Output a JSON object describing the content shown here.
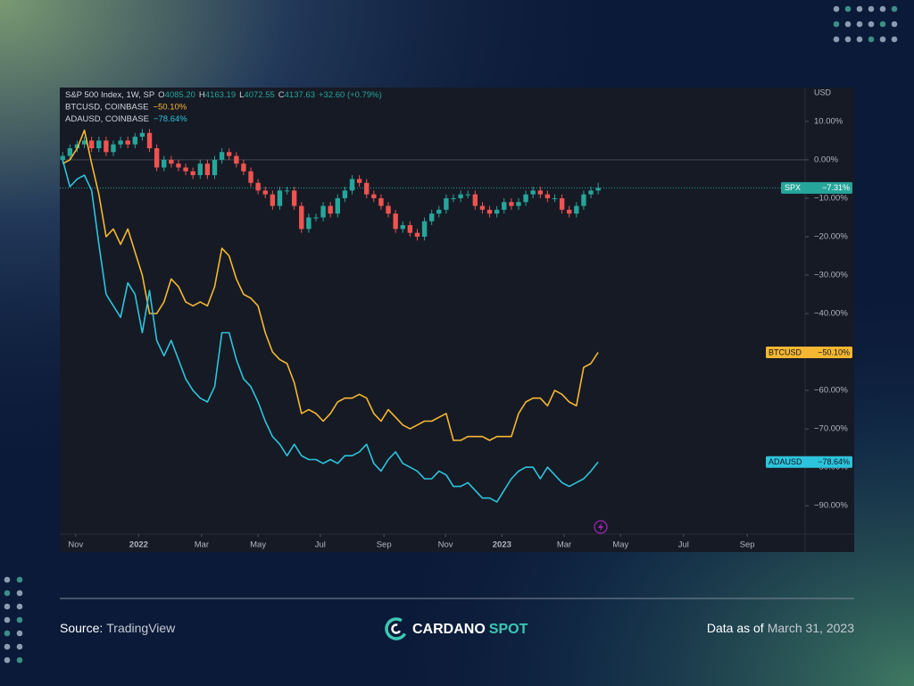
{
  "chart_data": {
    "type": "line",
    "header": {
      "title": "S&P 500 Index, 1W, SP",
      "fields": [
        {
          "label": "O",
          "value": "4085.20"
        },
        {
          "label": "H",
          "value": "4163.19"
        },
        {
          "label": "L",
          "value": "4072.55"
        },
        {
          "label": "C",
          "value": "4137.63"
        }
      ],
      "change": "+32.60 (+0.79%)"
    },
    "y_unit": "USD",
    "x": [
      0,
      1,
      2,
      3,
      4,
      5,
      6,
      7,
      8,
      9,
      10,
      11,
      12,
      13,
      14,
      15,
      16,
      17,
      18,
      19,
      20,
      21,
      22,
      23,
      24,
      25,
      26,
      27,
      28,
      29,
      30,
      31,
      32,
      33,
      34,
      35,
      36,
      37,
      38,
      39,
      40,
      41,
      42,
      43,
      44,
      45,
      46,
      47,
      48,
      49,
      50,
      51,
      52,
      53,
      54,
      55,
      56,
      57,
      58,
      59,
      60,
      61,
      62,
      63,
      64,
      65,
      66,
      67,
      68,
      69,
      70,
      71,
      72,
      73,
      74
    ],
    "xlim": [
      -0.4,
      102.6
    ],
    "xticks": [
      {
        "value": 1.8,
        "label": "Nov"
      },
      {
        "value": 10.5,
        "label": "2022"
      },
      {
        "value": 19.2,
        "label": "Mar"
      },
      {
        "value": 27.0,
        "label": "May"
      },
      {
        "value": 35.6,
        "label": "Jul"
      },
      {
        "value": 44.4,
        "label": "Sep"
      },
      {
        "value": 52.9,
        "label": "Nov"
      },
      {
        "value": 60.7,
        "label": "2023"
      },
      {
        "value": 69.3,
        "label": "Mar"
      },
      {
        "value": 77.1,
        "label": "May"
      },
      {
        "value": 85.8,
        "label": "Jul"
      },
      {
        "value": 94.6,
        "label": "Sep"
      }
    ],
    "ylim": [
      -97.4,
      18.8
    ],
    "yticks": [
      {
        "value": 10,
        "label": "10.00%"
      },
      {
        "value": 0,
        "label": "0.00%"
      },
      {
        "value": -10,
        "label": "−10.00%"
      },
      {
        "value": -20,
        "label": "−20.00%"
      },
      {
        "value": -30,
        "label": "−30.00%"
      },
      {
        "value": -40,
        "label": "−40.00%"
      },
      {
        "value": -50,
        "label": "−50.00%"
      },
      {
        "value": -60,
        "label": "−60.00%"
      },
      {
        "value": -70,
        "label": "−70.00%"
      },
      {
        "value": -80,
        "label": "−80.00%"
      },
      {
        "value": -90,
        "label": "−90.00%"
      }
    ],
    "series": [
      {
        "name": "SPX",
        "type": "candlestick",
        "up_color": "#26a69a",
        "down_color": "#ef5350",
        "color": "#26a69a",
        "value_label": "−7.31%",
        "open": [
          0,
          1,
          3,
          4,
          5,
          3,
          5,
          2,
          4,
          5,
          4,
          6,
          7,
          3,
          -2,
          0,
          -1,
          -2,
          -3,
          -4,
          -1,
          -4,
          0,
          2,
          1,
          -1,
          -3,
          -6,
          -8,
          -9,
          -12,
          -8,
          -8,
          -12,
          -18,
          -15,
          -15,
          -12,
          -14,
          -10,
          -8,
          -5,
          -6,
          -9,
          -10,
          -12,
          -14,
          -18,
          -17,
          -19,
          -20,
          -16,
          -14,
          -13,
          -10,
          -10,
          -9,
          -9,
          -12,
          -13,
          -14,
          -13,
          -11,
          -12,
          -11,
          -9,
          -8,
          -9,
          -10,
          -10,
          -13,
          -14,
          -12,
          -9,
          -8
        ],
        "high": [
          2,
          4,
          5,
          6,
          6,
          6,
          6,
          5,
          6,
          6,
          7,
          8,
          8,
          4,
          1,
          1,
          0,
          -1,
          -2,
          0,
          0,
          1,
          3,
          3,
          2,
          0,
          -2,
          -5,
          -7,
          -8,
          -7,
          -7,
          -7,
          -11,
          -14,
          -14,
          -11,
          -11,
          -9,
          -7,
          -4,
          -4,
          -5,
          -8,
          -9,
          -11,
          -13,
          -16,
          -16,
          -18,
          -15,
          -13,
          -12,
          -9,
          -9,
          -8,
          -8,
          -8,
          -11,
          -12,
          -12,
          -10,
          -10,
          -10,
          -8,
          -7,
          -7,
          -8,
          -9,
          -9,
          -12,
          -11,
          -8,
          -7,
          -6
        ],
        "low": [
          -1,
          0,
          2,
          3,
          2,
          2,
          1,
          1,
          3,
          3,
          3,
          5,
          2,
          -3,
          -3,
          -2,
          -3,
          -4,
          -5,
          -5,
          -5,
          -5,
          -1,
          0,
          -2,
          -4,
          -7,
          -9,
          -10,
          -13,
          -13,
          -9,
          -13,
          -19,
          -19,
          -16,
          -16,
          -15,
          -15,
          -11,
          -9,
          -7,
          -10,
          -11,
          -13,
          -15,
          -19,
          -19,
          -20,
          -21,
          -21,
          -17,
          -15,
          -14,
          -11,
          -11,
          -10,
          -13,
          -14,
          -15,
          -15,
          -14,
          -13,
          -13,
          -12,
          -10,
          -10,
          -11,
          -11,
          -14,
          -15,
          -15,
          -13,
          -10,
          -9
        ],
        "close": [
          1,
          3,
          4,
          5,
          3,
          5,
          2,
          4,
          5,
          4,
          6,
          7,
          3,
          -2,
          0,
          -1,
          -2,
          -3,
          -4,
          -1,
          -4,
          0,
          2,
          1,
          -1,
          -3,
          -6,
          -8,
          -9,
          -12,
          -8,
          -8,
          -12,
          -18,
          -15,
          -15,
          -12,
          -14,
          -10,
          -8,
          -5,
          -6,
          -9,
          -10,
          -12,
          -14,
          -18,
          -17,
          -19,
          -20,
          -16,
          -14,
          -13,
          -10,
          -10,
          -9,
          -9,
          -12,
          -13,
          -14,
          -13,
          -11,
          -12,
          -11,
          -9,
          -8,
          -9,
          -10,
          -10,
          -13,
          -14,
          -12,
          -9,
          -8,
          -7.31
        ]
      },
      {
        "name": "BTCUSD",
        "title": "BTCUSD, COINBASE",
        "color": "#f5b731",
        "value_label": "−50.10%",
        "values": [
          -1,
          0,
          3,
          7.7,
          -1,
          -9,
          -20,
          -18,
          -22,
          -18,
          -24,
          -30,
          -40,
          -40,
          -37,
          -31,
          -33,
          -37,
          -38,
          -37,
          -38,
          -33,
          -23,
          -25,
          -31,
          -35,
          -36,
          -38,
          -45,
          -50,
          -52,
          -53,
          -58,
          -66,
          -65,
          -66,
          -68,
          -66,
          -63,
          -62,
          -62,
          -61,
          -62,
          -66,
          -68,
          -65,
          -67,
          -69,
          -70,
          -69,
          -68,
          -68,
          -67,
          -66,
          -73,
          -73,
          -72,
          -72,
          -72,
          -73,
          -72,
          -72,
          -72,
          -66,
          -63,
          -62,
          -62,
          -64,
          -60,
          -61,
          -63,
          -64,
          -54,
          -53,
          -50.1
        ]
      },
      {
        "name": "ADAUSD",
        "title": "ADAUSD, COINBASE",
        "color": "#2cc4dc",
        "value_label": "−78.64%",
        "values": [
          0,
          -7,
          -5,
          -4,
          -8,
          -22,
          -35,
          -38,
          -41,
          -32,
          -35,
          -45,
          -34,
          -47,
          -51,
          -47,
          -52,
          -57,
          -60,
          -62,
          -63,
          -59,
          -45,
          -45,
          -52,
          -57,
          -59,
          -63,
          -68,
          -72,
          -74,
          -77,
          -74,
          -77,
          -78,
          -78,
          -79,
          -78,
          -79,
          -77,
          -77,
          -76,
          -74,
          -79,
          -81,
          -78,
          -76,
          -79,
          -80,
          -81,
          -83,
          -83,
          -81,
          -82,
          -85,
          -85,
          -84,
          -86,
          -88,
          -88,
          -89,
          -86,
          -83,
          -81,
          -80,
          -80,
          -83,
          -80,
          -82,
          -84,
          -85,
          -84,
          -83,
          -81,
          -78.64
        ]
      }
    ]
  },
  "footer": {
    "source_label": "Source:",
    "source": "TradingView",
    "brand_1": "CARDANO",
    "brand_2": "SPOT",
    "date_label": "Data as of",
    "date": "March 31, 2023"
  }
}
